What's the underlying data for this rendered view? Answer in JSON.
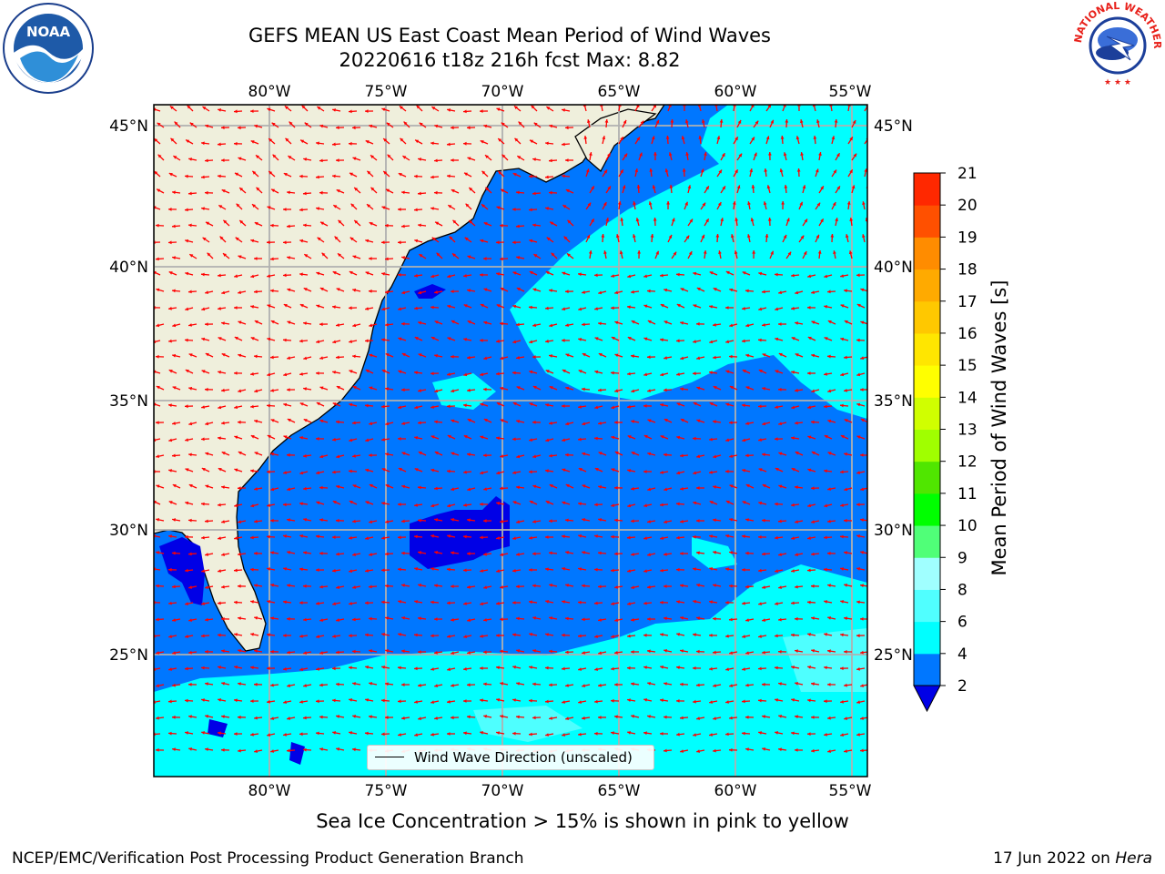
{
  "title_line1": "GEFS MEAN US East Coast Mean Period of Wind Waves",
  "title_line2": "20220616 t18z 216h fcst   Max: 8.82",
  "map": {
    "lon_ticks": [
      "80°W",
      "75°W",
      "70°W",
      "65°W",
      "60°W",
      "55°W"
    ],
    "lat_ticks": [
      "45°N",
      "40°N",
      "35°N",
      "30°N",
      "25°N"
    ],
    "grid": true,
    "land_color": "#efefdc",
    "arrow_color": "#ff0000",
    "field_colors": {
      "deep": "#0000e6",
      "mid": "#0077ff",
      "light": "#00ffff",
      "pale": "#6fffff"
    }
  },
  "legend": {
    "label": "Wind Wave Direction (unscaled)"
  },
  "colorbar": {
    "label": "Mean Period of Wind Waves [s]",
    "tick_labels": [
      "2",
      "4",
      "6",
      "8",
      "9",
      "10",
      "11",
      "12",
      "13",
      "14",
      "15",
      "16",
      "17",
      "18",
      "19",
      "20",
      "21"
    ],
    "colors": [
      "#0077ff",
      "#00ffff",
      "#50ffff",
      "#a0ffff",
      "#50ff78",
      "#00ff00",
      "#50e600",
      "#a0ff00",
      "#d0ff00",
      "#ffff00",
      "#ffe600",
      "#ffc800",
      "#ffaa00",
      "#ff8c00",
      "#ff5000",
      "#ff2800",
      "#ff0000"
    ],
    "under_color": "#0000e6"
  },
  "note": "Sea Ice Concentration > 15% is shown in pink to yellow",
  "footer_left": "NCEP/EMC/Verification Post Processing Product Generation Branch",
  "footer_right_date": "17 Jun 2022 on ",
  "footer_right_host": "Hera",
  "logos": {
    "left": "NOAA",
    "right": "NATIONAL WEATHER SERVICE"
  }
}
